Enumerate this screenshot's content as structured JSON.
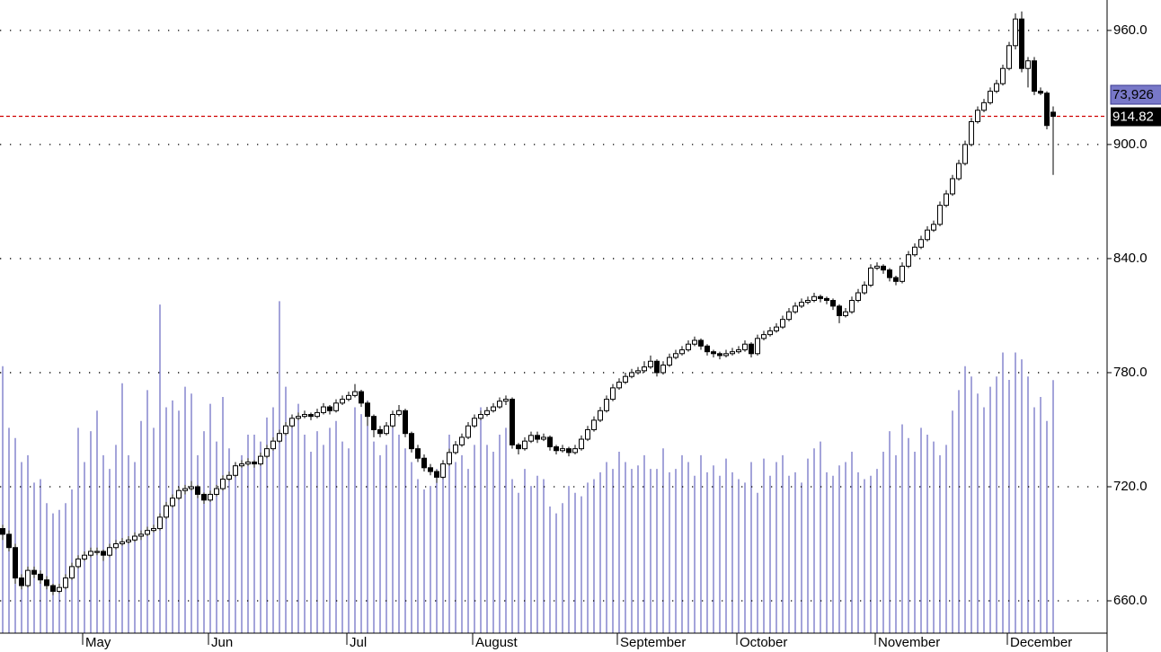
{
  "chart_data": {
    "type": "candlestick",
    "ylim": [
      643,
      976
    ],
    "yticks": [
      {
        "value": 660,
        "label": "660.0"
      },
      {
        "value": 720,
        "label": "720.0"
      },
      {
        "value": 780,
        "label": "780.0"
      },
      {
        "value": 840,
        "label": "840.0"
      },
      {
        "value": 900,
        "label": "900.0"
      },
      {
        "value": 960,
        "label": "960.0"
      }
    ],
    "grid": true,
    "vlim": [
      0,
      185000
    ],
    "volume_color": "#4a4ab4",
    "up_color": "#ffffff",
    "down_color": "#000000",
    "last_line_color": "#d00000",
    "volume_label": "73,926",
    "categories": [
      null,
      null,
      null,
      null,
      null,
      null,
      null,
      null,
      null,
      null,
      null,
      null,
      null,
      "May",
      null,
      null,
      null,
      null,
      null,
      null,
      null,
      null,
      null,
      null,
      null,
      null,
      null,
      null,
      null,
      null,
      null,
      null,
      null,
      "Jun",
      null,
      null,
      null,
      null,
      null,
      null,
      null,
      null,
      null,
      null,
      null,
      null,
      null,
      null,
      null,
      null,
      null,
      null,
      null,
      null,
      null,
      "Jul",
      null,
      null,
      null,
      null,
      null,
      null,
      null,
      null,
      null,
      null,
      null,
      null,
      null,
      null,
      null,
      null,
      null,
      null,
      null,
      "August",
      null,
      null,
      null,
      null,
      null,
      null,
      null,
      null,
      null,
      null,
      null,
      null,
      null,
      null,
      null,
      null,
      null,
      null,
      null,
      null,
      null,
      null,
      "September",
      null,
      null,
      null,
      null,
      null,
      null,
      null,
      null,
      null,
      null,
      null,
      null,
      null,
      null,
      null,
      null,
      null,
      null,
      "October",
      null,
      null,
      null,
      null,
      null,
      null,
      null,
      null,
      null,
      null,
      null,
      null,
      null,
      null,
      null,
      null,
      null,
      null,
      null,
      null,
      null,
      "November",
      null,
      null,
      null,
      null,
      null,
      null,
      null,
      null,
      null,
      null,
      null,
      null,
      null,
      null,
      null,
      null,
      null,
      null,
      null,
      null,
      "December",
      null,
      null,
      null,
      null,
      null,
      null,
      null
    ],
    "ohlc": [
      [
        698,
        700,
        692,
        695
      ],
      [
        695,
        697,
        686,
        688
      ],
      [
        688,
        690,
        669,
        672
      ],
      [
        672,
        674,
        666,
        668
      ],
      [
        668,
        678,
        667,
        676
      ],
      [
        676,
        678,
        672,
        674
      ],
      [
        674,
        676,
        669,
        671
      ],
      [
        671,
        673,
        666,
        668
      ],
      [
        668,
        669,
        663,
        665
      ],
      [
        665,
        669,
        664,
        667
      ],
      [
        667,
        674,
        666,
        672
      ],
      [
        672,
        680,
        671,
        678
      ],
      [
        678,
        684,
        677,
        682
      ],
      [
        682,
        686,
        681,
        684
      ],
      [
        684,
        688,
        683,
        686
      ],
      [
        686,
        688,
        684,
        686
      ],
      [
        686,
        687,
        681,
        684
      ],
      [
        684,
        690,
        683,
        688
      ],
      [
        688,
        692,
        687,
        690
      ],
      [
        690,
        693,
        689,
        691
      ],
      [
        691,
        694,
        690,
        692
      ],
      [
        692,
        696,
        691,
        694
      ],
      [
        694,
        697,
        692,
        695
      ],
      [
        695,
        699,
        694,
        697
      ],
      [
        697,
        700,
        696,
        698
      ],
      [
        698,
        706,
        697,
        704
      ],
      [
        704,
        712,
        703,
        710
      ],
      [
        710,
        716,
        709,
        714
      ],
      [
        714,
        720,
        713,
        718
      ],
      [
        718,
        721,
        716,
        719
      ],
      [
        719,
        723,
        718,
        720
      ],
      [
        720,
        721,
        714,
        716
      ],
      [
        716,
        717,
        711,
        713
      ],
      [
        713,
        718,
        712,
        716
      ],
      [
        716,
        721,
        715,
        719
      ],
      [
        719,
        726,
        718,
        724
      ],
      [
        724,
        728,
        723,
        726
      ],
      [
        726,
        733,
        725,
        731
      ],
      [
        731,
        734,
        730,
        732
      ],
      [
        732,
        735,
        731,
        733
      ],
      [
        733,
        734,
        730,
        732
      ],
      [
        732,
        738,
        731,
        736
      ],
      [
        736,
        742,
        735,
        740
      ],
      [
        740,
        746,
        739,
        744
      ],
      [
        744,
        750,
        743,
        748
      ],
      [
        748,
        754,
        747,
        752
      ],
      [
        752,
        758,
        751,
        756
      ],
      [
        756,
        759,
        755,
        757
      ],
      [
        757,
        760,
        756,
        758
      ],
      [
        758,
        759,
        755,
        757
      ],
      [
        757,
        761,
        756,
        759
      ],
      [
        759,
        764,
        758,
        762
      ],
      [
        762,
        763,
        758,
        760
      ],
      [
        760,
        766,
        759,
        764
      ],
      [
        764,
        768,
        763,
        766
      ],
      [
        766,
        770,
        765,
        768
      ],
      [
        768,
        774,
        767,
        770
      ],
      [
        770,
        771,
        762,
        764
      ],
      [
        764,
        765,
        752,
        757
      ],
      [
        757,
        758,
        746,
        750
      ],
      [
        750,
        752,
        746,
        748
      ],
      [
        748,
        754,
        747,
        752
      ],
      [
        752,
        760,
        751,
        758
      ],
      [
        758,
        763,
        757,
        760
      ],
      [
        760,
        761,
        746,
        748
      ],
      [
        748,
        749,
        738,
        740
      ],
      [
        740,
        742,
        733,
        735
      ],
      [
        735,
        737,
        728,
        730
      ],
      [
        730,
        732,
        726,
        728
      ],
      [
        728,
        729,
        722,
        725
      ],
      [
        725,
        734,
        724,
        732
      ],
      [
        732,
        740,
        731,
        738
      ],
      [
        738,
        744,
        737,
        742
      ],
      [
        742,
        748,
        741,
        746
      ],
      [
        746,
        754,
        745,
        752
      ],
      [
        752,
        758,
        751,
        756
      ],
      [
        756,
        760,
        755,
        758
      ],
      [
        758,
        762,
        757,
        760
      ],
      [
        760,
        764,
        759,
        762
      ],
      [
        762,
        767,
        761,
        765
      ],
      [
        765,
        768,
        763,
        766
      ],
      [
        766,
        767,
        740,
        742
      ],
      [
        742,
        743,
        737,
        740
      ],
      [
        740,
        746,
        739,
        744
      ],
      [
        744,
        749,
        743,
        747
      ],
      [
        747,
        749,
        743,
        745
      ],
      [
        745,
        748,
        744,
        746
      ],
      [
        746,
        747,
        739,
        741
      ],
      [
        741,
        742,
        737,
        739
      ],
      [
        739,
        742,
        738,
        740
      ],
      [
        740,
        741,
        736,
        738
      ],
      [
        738,
        742,
        737,
        740
      ],
      [
        740,
        747,
        739,
        745
      ],
      [
        745,
        752,
        744,
        750
      ],
      [
        750,
        757,
        749,
        755
      ],
      [
        755,
        762,
        754,
        760
      ],
      [
        760,
        768,
        759,
        766
      ],
      [
        766,
        774,
        765,
        772
      ],
      [
        772,
        777,
        771,
        775
      ],
      [
        775,
        780,
        774,
        778
      ],
      [
        778,
        782,
        777,
        780
      ],
      [
        780,
        783,
        779,
        781
      ],
      [
        781,
        786,
        780,
        783
      ],
      [
        783,
        789,
        782,
        786
      ],
      [
        786,
        787,
        778,
        780
      ],
      [
        780,
        786,
        779,
        784
      ],
      [
        784,
        790,
        783,
        788
      ],
      [
        788,
        792,
        787,
        790
      ],
      [
        790,
        794,
        789,
        792
      ],
      [
        792,
        797,
        791,
        795
      ],
      [
        795,
        799,
        794,
        797
      ],
      [
        797,
        798,
        792,
        794
      ],
      [
        794,
        795,
        789,
        791
      ],
      [
        791,
        792,
        788,
        790
      ],
      [
        790,
        791,
        787,
        789
      ],
      [
        789,
        792,
        788,
        790
      ],
      [
        790,
        793,
        789,
        791
      ],
      [
        791,
        794,
        790,
        792
      ],
      [
        792,
        797,
        791,
        795
      ],
      [
        795,
        796,
        788,
        790
      ],
      [
        790,
        800,
        789,
        798
      ],
      [
        798,
        802,
        797,
        800
      ],
      [
        800,
        804,
        799,
        802
      ],
      [
        802,
        806,
        801,
        804
      ],
      [
        804,
        810,
        803,
        808
      ],
      [
        808,
        814,
        807,
        812
      ],
      [
        812,
        817,
        811,
        815
      ],
      [
        815,
        819,
        814,
        817
      ],
      [
        817,
        820,
        816,
        818
      ],
      [
        818,
        822,
        817,
        820
      ],
      [
        820,
        821,
        817,
        819
      ],
      [
        819,
        820,
        816,
        818
      ],
      [
        818,
        819,
        813,
        815
      ],
      [
        815,
        816,
        806,
        810
      ],
      [
        810,
        814,
        809,
        812
      ],
      [
        812,
        820,
        811,
        818
      ],
      [
        818,
        824,
        817,
        822
      ],
      [
        822,
        828,
        821,
        826
      ],
      [
        826,
        837,
        825,
        835
      ],
      [
        835,
        838,
        834,
        836
      ],
      [
        836,
        837,
        832,
        834
      ],
      [
        834,
        835,
        828,
        830
      ],
      [
        830,
        831,
        826,
        828
      ],
      [
        828,
        838,
        827,
        836
      ],
      [
        836,
        844,
        835,
        842
      ],
      [
        842,
        848,
        841,
        846
      ],
      [
        846,
        852,
        845,
        850
      ],
      [
        850,
        857,
        849,
        855
      ],
      [
        855,
        860,
        854,
        858
      ],
      [
        858,
        870,
        857,
        868
      ],
      [
        868,
        876,
        867,
        874
      ],
      [
        874,
        884,
        873,
        882
      ],
      [
        882,
        892,
        881,
        890
      ],
      [
        890,
        902,
        889,
        900
      ],
      [
        900,
        914,
        899,
        912
      ],
      [
        912,
        920,
        911,
        918
      ],
      [
        918,
        924,
        917,
        922
      ],
      [
        922,
        930,
        921,
        928
      ],
      [
        928,
        934,
        927,
        932
      ],
      [
        932,
        942,
        931,
        940
      ],
      [
        940,
        954,
        939,
        952
      ],
      [
        952,
        969,
        950,
        966
      ],
      [
        966,
        970,
        938,
        940
      ],
      [
        940,
        946,
        930,
        944
      ],
      [
        944,
        946,
        926,
        928
      ],
      [
        928,
        930,
        926,
        927
      ],
      [
        927,
        928,
        908,
        910
      ],
      [
        917,
        920,
        884,
        914.82
      ]
    ],
    "volume": [
      78000,
      60000,
      57000,
      50000,
      52000,
      44000,
      45000,
      38000,
      35000,
      36000,
      38000,
      42000,
      60000,
      50000,
      59000,
      65000,
      52000,
      48000,
      55000,
      73000,
      52000,
      50000,
      62000,
      71000,
      60000,
      96000,
      66000,
      68000,
      65000,
      72000,
      70000,
      52000,
      59000,
      67000,
      56000,
      69000,
      54000,
      48000,
      52000,
      58000,
      58000,
      56000,
      63000,
      66000,
      97000,
      72000,
      60000,
      67000,
      58000,
      53000,
      59000,
      55000,
      60000,
      62000,
      56000,
      54000,
      66000,
      64000,
      68000,
      56000,
      52000,
      55000,
      60000,
      58000,
      54000,
      50000,
      45000,
      42000,
      43000,
      48000,
      46000,
      58000,
      50000,
      52000,
      48000,
      55000,
      66000,
      55000,
      53000,
      58000,
      60000,
      45000,
      41000,
      48000,
      43000,
      46000,
      45000,
      37000,
      35000,
      38000,
      43000,
      41000,
      40000,
      44000,
      45000,
      47000,
      50000,
      48000,
      53000,
      50000,
      48000,
      49000,
      52000,
      48000,
      48000,
      54000,
      47000,
      48000,
      52000,
      50000,
      46000,
      52000,
      47000,
      49000,
      46000,
      51000,
      47000,
      45000,
      44000,
      50000,
      41000,
      51000,
      46000,
      50000,
      52000,
      46000,
      47000,
      44000,
      51000,
      54000,
      56000,
      47000,
      46000,
      49000,
      50000,
      53000,
      47000,
      45000,
      46000,
      48000,
      53000,
      59000,
      52000,
      61000,
      57000,
      53000,
      60000,
      58000,
      56000,
      52000,
      55000,
      65000,
      71000,
      78000,
      75000,
      70000,
      66000,
      72000,
      75000,
      82000,
      74000,
      82000,
      80000,
      75000,
      66000,
      69000,
      62000,
      73926
    ]
  }
}
